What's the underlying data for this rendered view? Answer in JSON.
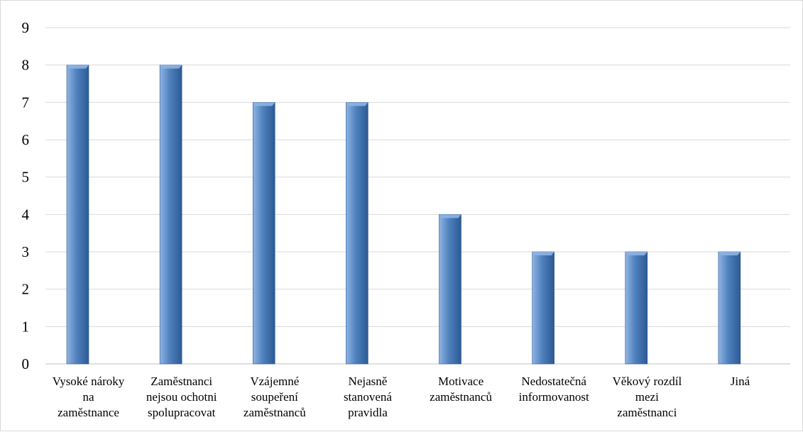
{
  "chart_data": {
    "type": "bar",
    "categories": [
      [
        "Vysoké nároky",
        "na",
        "zaměstnance"
      ],
      [
        "Zaměstnanci",
        "nejsou ochotni",
        "spolupracovat"
      ],
      [
        "Vzájemné",
        "soupeření",
        "zaměstnanců"
      ],
      [
        "Nejasně",
        "stanovená",
        "pravidla"
      ],
      [
        "Motivace",
        "zaměstnanců"
      ],
      [
        "Nedostatečná",
        "informovanost"
      ],
      [
        "Věkový rozdíl",
        "mezi",
        "zaměstnanci"
      ],
      [
        "Jiná"
      ]
    ],
    "values": [
      8,
      8,
      7,
      7,
      4,
      3,
      3,
      3
    ],
    "ylim": [
      0,
      9
    ],
    "yticks": [
      0,
      1,
      2,
      3,
      4,
      5,
      6,
      7,
      8,
      9
    ],
    "grid": true,
    "legend": "none",
    "colors": {
      "bar_light": "#8fb4e3",
      "bar_mid": "#4f81bd",
      "bar_dark": "#2c5a94",
      "gridline": "#d9d9d9",
      "axis": "#bfbfbf"
    }
  }
}
